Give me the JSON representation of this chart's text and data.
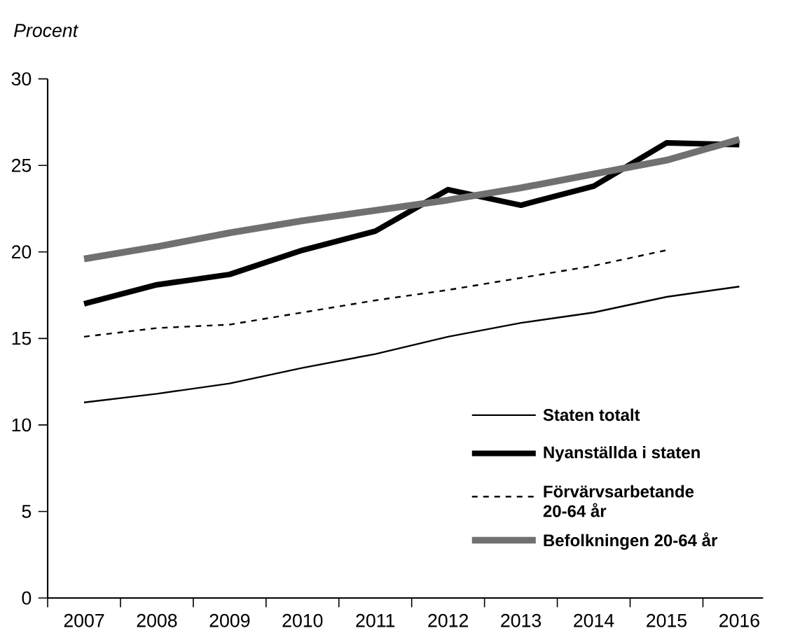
{
  "chart_data": {
    "type": "line",
    "ylabel": "Procent",
    "categories": [
      "2007",
      "2008",
      "2009",
      "2010",
      "2011",
      "2012",
      "2013",
      "2014",
      "2015",
      "2016"
    ],
    "ylim": [
      0,
      30
    ],
    "yticks": [
      0,
      5,
      10,
      15,
      20,
      25,
      30
    ],
    "grid": false,
    "legend": "bottom right",
    "marker": "none",
    "series": [
      {
        "name": "Staten totalt",
        "color": "#000000",
        "line_style": "solid",
        "values": [
          11.3,
          11.8,
          12.4,
          13.3,
          14.1,
          15.1,
          15.9,
          16.5,
          17.4,
          18.0
        ]
      },
      {
        "name": "Nyanställda i staten",
        "color": "#000000",
        "line_style": "solid",
        "values": [
          17.0,
          18.1,
          18.7,
          20.1,
          21.2,
          23.6,
          22.7,
          23.8,
          26.3,
          26.2
        ]
      },
      {
        "name": "Förvärvsarbetande 20-64 år",
        "color": "#000000",
        "line_style": "dashed",
        "values": [
          15.1,
          15.6,
          15.8,
          16.5,
          17.2,
          17.8,
          18.5,
          19.2,
          20.1,
          null
        ]
      },
      {
        "name": "Befolkningen 20-64 år",
        "color": "#707070",
        "line_style": "solid",
        "values": [
          19.6,
          20.3,
          21.1,
          21.8,
          22.4,
          23.0,
          23.7,
          24.5,
          25.3,
          26.5
        ]
      }
    ]
  }
}
